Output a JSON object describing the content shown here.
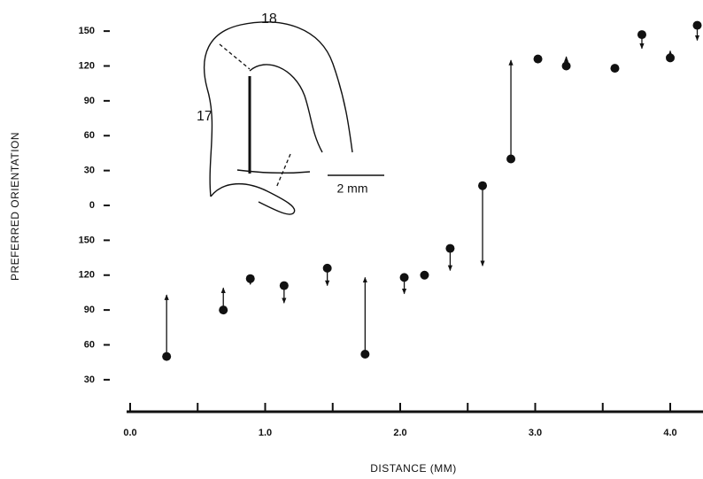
{
  "chart_data": {
    "type": "scatter",
    "x_label": "DISTANCE (MM)",
    "y_label": "PREFERRED ORIENTATION",
    "x": [
      0.27,
      0.69,
      0.89,
      1.14,
      1.46,
      1.74,
      2.03,
      2.18,
      2.37,
      2.61,
      2.82,
      3.02,
      3.23,
      3.59,
      3.79,
      4.0,
      4.2
    ],
    "values": [
      50,
      90,
      117,
      111,
      126,
      52,
      118,
      120,
      143,
      197,
      220,
      306,
      300,
      298,
      327,
      307,
      335
    ],
    "arrows": [
      53,
      19,
      -5,
      -15,
      -15,
      66,
      -14,
      0,
      -19,
      -69,
      85,
      0,
      8,
      0,
      -12,
      6,
      -13
    ],
    "color": "#111111",
    "xlim": [
      0,
      4.25
    ],
    "ylim": [
      20,
      340
    ],
    "xticks": [
      {
        "value": 0,
        "label": "0.0"
      },
      {
        "value": 1,
        "label": "1.0"
      },
      {
        "value": 2,
        "label": "2.0"
      },
      {
        "value": 3,
        "label": "3.0"
      },
      {
        "value": 4,
        "label": "4.0"
      }
    ],
    "minor_xticks": [
      0.5,
      1.5,
      2.5,
      3.5
    ],
    "yticks": [
      30,
      60,
      90,
      120,
      150,
      {
        "value": 180,
        "label": "0"
      },
      {
        "value": 210,
        "label": "30"
      },
      {
        "value": 240,
        "label": "60"
      },
      {
        "value": 270,
        "label": "90"
      },
      {
        "value": 300,
        "label": "120"
      },
      {
        "value": 330,
        "label": "150"
      }
    ],
    "inset": {
      "area_a": "18",
      "area_b": "17",
      "scale": "2 mm"
    }
  }
}
